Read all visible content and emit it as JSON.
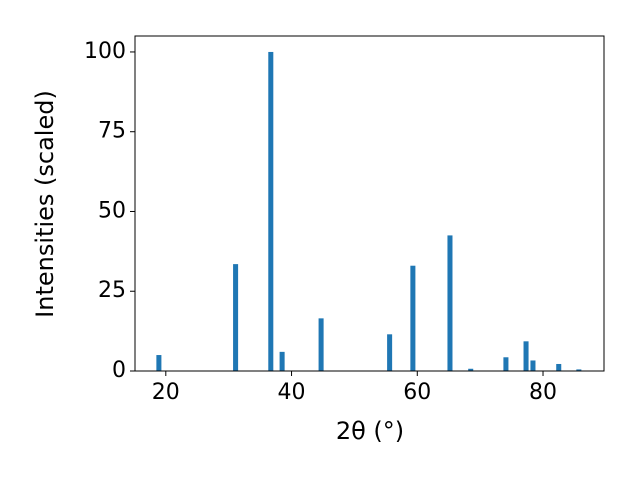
{
  "chart_data": {
    "type": "bar",
    "xlabel": "2θ (°)",
    "ylabel": "Intensities (scaled)",
    "x": [
      18.9,
      31.1,
      36.7,
      38.5,
      44.7,
      55.6,
      59.3,
      65.2,
      68.5,
      74.1,
      77.3,
      78.4,
      82.5,
      85.7
    ],
    "values": [
      5,
      33.5,
      100,
      6,
      16.5,
      11.5,
      33,
      42.5,
      0.7,
      4.3,
      9.3,
      3.3,
      2.2,
      0.5
    ],
    "color": "#1f77b4",
    "xlim": [
      15.1,
      89.7
    ],
    "ylim": [
      0,
      105
    ],
    "xticks": [
      20,
      40,
      60,
      80
    ],
    "yticks": [
      0,
      25,
      50,
      75,
      100
    ]
  }
}
